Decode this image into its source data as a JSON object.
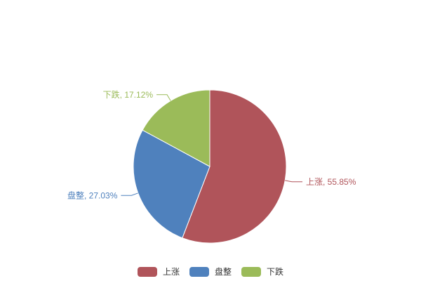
{
  "chart_data": {
    "type": "pie",
    "title": "",
    "categories": [
      "上涨",
      "盘整",
      "下跌"
    ],
    "values": [
      55.85,
      27.03,
      17.12
    ],
    "unit": "%",
    "slices": [
      {
        "label": "上涨",
        "value": 55.85,
        "percent_display": "55.85%",
        "callout": "上涨, 55.85%",
        "color": "#b0545a"
      },
      {
        "label": "盘整",
        "value": 27.03,
        "percent_display": "27.03%",
        "callout": "盘整, 27.03%",
        "color": "#4f81bd"
      },
      {
        "label": "下跌",
        "value": 17.12,
        "percent_display": "17.12%",
        "callout": "下跌, 17.12%",
        "color": "#9bbb59"
      }
    ],
    "start_angle": "top",
    "direction": "clockwise",
    "labels_outside": true,
    "label_line_color_matches_slice": true,
    "legend_position": "bottom-center",
    "legend_items": [
      "上涨",
      "盘整",
      "下跌"
    ],
    "background_color": "#ffffff",
    "slice_border_color": "#ffffff"
  }
}
